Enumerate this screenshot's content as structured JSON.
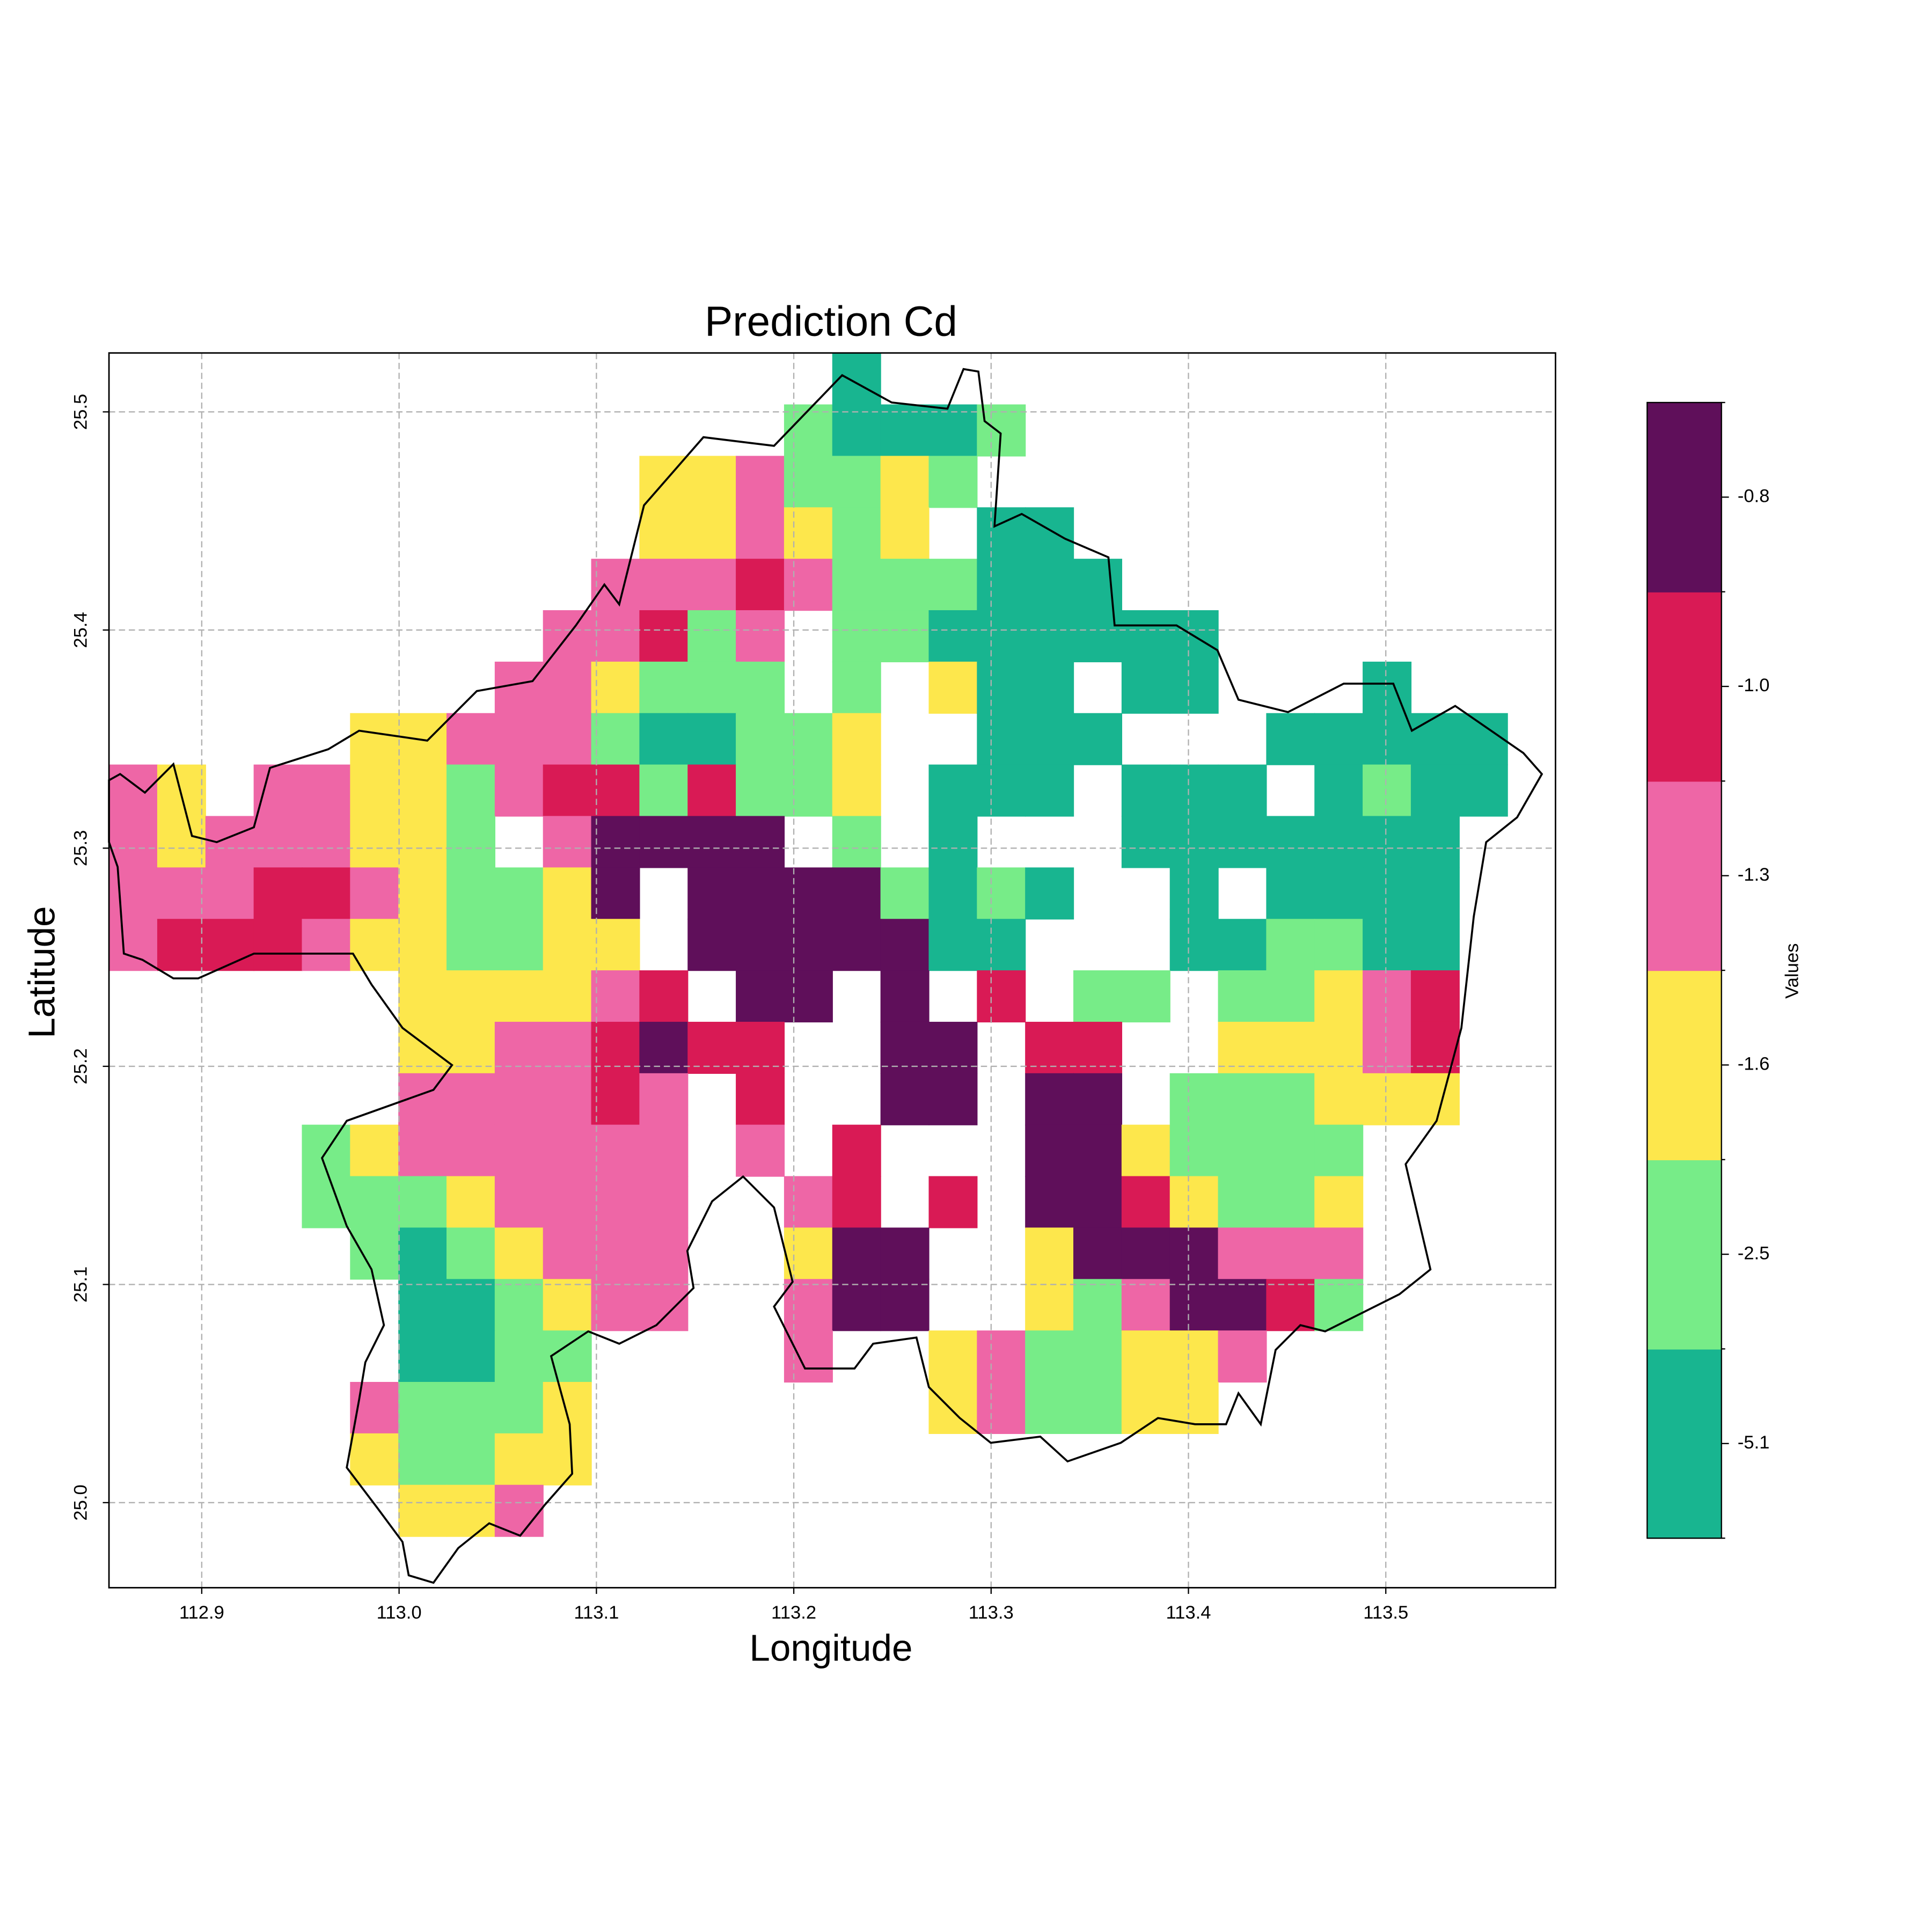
{
  "chart_data": {
    "type": "heatmap",
    "title": "Prediction Cd",
    "xlabel": "Longitude",
    "ylabel": "Latitude",
    "xlim": [
      112.853,
      113.586
    ],
    "ylim": [
      24.961,
      25.527
    ],
    "xticks": [
      112.9,
      {
        "value": 113.0,
        "label": "113.0"
      },
      113.1,
      113.2,
      113.3,
      113.4,
      113.5
    ],
    "yticks": [
      {
        "value": 25.0,
        "label": "25.0"
      },
      25.1,
      25.2,
      25.3,
      25.4,
      25.5
    ],
    "grid": true,
    "colorbar": {
      "label": "Values",
      "colors": [
        "#18b590",
        "#77ec88",
        "#fde74c",
        "#ee66a6",
        "#d91a55",
        "#5f0f5a"
      ],
      "ticks": [
        -5.1,
        -2.5,
        -1.6,
        -1.3,
        {
          "value": -1.0,
          "label": "-1.0"
        },
        -0.8
      ]
    },
    "z": [
      [
        null,
        null,
        null,
        null,
        null,
        null,
        null,
        null,
        null,
        null,
        null,
        null,
        null,
        null,
        null,
        -5.1,
        null,
        null,
        null,
        null,
        null,
        null,
        null,
        null,
        null,
        null,
        null,
        null,
        null,
        null
      ],
      [
        null,
        null,
        null,
        null,
        null,
        null,
        null,
        null,
        null,
        null,
        null,
        null,
        null,
        null,
        -2.5,
        -5.1,
        -5.1,
        -5.1,
        -2.5,
        null,
        null,
        null,
        null,
        null,
        null,
        null,
        null,
        null,
        null,
        null
      ],
      [
        null,
        null,
        null,
        null,
        null,
        null,
        null,
        null,
        null,
        null,
        null,
        -1.6,
        -1.6,
        -1.3,
        -2.5,
        -2.5,
        -1.6,
        -2.5,
        null,
        null,
        null,
        null,
        null,
        null,
        null,
        null,
        null,
        null,
        null,
        null
      ],
      [
        null,
        null,
        null,
        null,
        null,
        null,
        null,
        null,
        null,
        null,
        null,
        -1.6,
        -1.6,
        -1.3,
        -1.6,
        -2.5,
        -1.6,
        null,
        -5.1,
        -5.1,
        null,
        null,
        null,
        null,
        null,
        null,
        null,
        null,
        null,
        null
      ],
      [
        null,
        null,
        null,
        null,
        null,
        null,
        null,
        null,
        null,
        null,
        -1.3,
        -1.3,
        -1.3,
        -1.0,
        -1.3,
        -2.5,
        -2.5,
        -2.5,
        -5.1,
        -5.1,
        -5.1,
        null,
        null,
        null,
        null,
        null,
        null,
        null,
        null,
        null
      ],
      [
        null,
        null,
        null,
        null,
        null,
        null,
        null,
        null,
        null,
        -1.3,
        -1.3,
        -1.0,
        -2.5,
        -1.3,
        null,
        -2.5,
        -2.5,
        -5.1,
        -5.1,
        -5.1,
        -5.1,
        -5.1,
        -5.1,
        null,
        null,
        null,
        null,
        null,
        null,
        null
      ],
      [
        null,
        null,
        null,
        null,
        null,
        null,
        null,
        null,
        -1.3,
        -1.3,
        -1.6,
        -2.5,
        -2.5,
        -2.5,
        null,
        -2.5,
        null,
        -1.6,
        -5.1,
        -5.1,
        null,
        -5.1,
        -5.1,
        null,
        null,
        null,
        -5.1,
        null,
        null,
        null
      ],
      [
        null,
        null,
        null,
        null,
        null,
        -1.6,
        -1.6,
        -1.3,
        -1.3,
        -1.3,
        -2.5,
        -5.1,
        -5.1,
        -2.5,
        -2.5,
        -1.6,
        null,
        null,
        -5.1,
        -5.1,
        -5.1,
        null,
        null,
        null,
        -5.1,
        -5.1,
        -5.1,
        -5.1,
        -5.1,
        null
      ],
      [
        -1.3,
        -1.6,
        null,
        -1.3,
        -1.3,
        -1.6,
        -1.6,
        -2.5,
        -1.3,
        -1.0,
        -1.0,
        -2.5,
        -1.0,
        -2.5,
        -2.5,
        -1.6,
        null,
        -5.1,
        -5.1,
        -5.1,
        null,
        -5.1,
        -5.1,
        -5.1,
        null,
        -5.1,
        -2.5,
        -5.1,
        -5.1,
        null
      ],
      [
        -1.3,
        -1.6,
        -1.3,
        -1.3,
        -1.3,
        -1.6,
        -1.6,
        -2.5,
        null,
        -1.3,
        -0.8,
        -0.8,
        -0.8,
        -0.8,
        null,
        -2.5,
        null,
        -5.1,
        null,
        null,
        null,
        -5.1,
        -5.1,
        -5.1,
        -5.1,
        -5.1,
        -5.1,
        -5.1,
        null,
        null
      ],
      [
        -1.3,
        -1.3,
        -1.3,
        -1.0,
        -1.0,
        -1.3,
        -1.6,
        -2.5,
        -2.5,
        -1.6,
        -0.8,
        null,
        -0.8,
        -0.8,
        -0.8,
        -0.8,
        -2.5,
        -5.1,
        -2.5,
        -5.1,
        null,
        null,
        -5.1,
        null,
        -5.1,
        -5.1,
        -5.1,
        -5.1,
        null,
        null
      ],
      [
        -1.3,
        -1.0,
        -1.0,
        -1.0,
        -1.3,
        -1.6,
        -1.6,
        -2.5,
        -2.5,
        -1.6,
        -1.6,
        null,
        -0.8,
        -0.8,
        -0.8,
        -0.8,
        -0.8,
        -5.1,
        -5.1,
        null,
        null,
        null,
        -5.1,
        -5.1,
        -2.5,
        -2.5,
        -5.1,
        -5.1,
        null,
        null
      ],
      [
        null,
        null,
        null,
        null,
        null,
        null,
        -1.6,
        -1.6,
        -1.6,
        -1.6,
        -1.3,
        -1.0,
        null,
        -0.8,
        -0.8,
        null,
        -0.8,
        null,
        -1.0,
        null,
        -2.5,
        -2.5,
        null,
        -2.5,
        -2.5,
        -1.6,
        -1.3,
        -1.0,
        null,
        null
      ],
      [
        null,
        null,
        null,
        null,
        null,
        null,
        -1.6,
        -1.6,
        -1.3,
        -1.3,
        -1.0,
        -0.8,
        -1.0,
        -1.0,
        null,
        null,
        -0.8,
        -0.8,
        null,
        -1.0,
        -1.0,
        null,
        null,
        -1.6,
        -1.6,
        -1.6,
        -1.3,
        -1.0,
        null,
        null
      ],
      [
        null,
        null,
        null,
        null,
        null,
        null,
        -1.3,
        -1.3,
        -1.3,
        -1.3,
        -1.0,
        -1.3,
        null,
        -1.0,
        null,
        null,
        -0.8,
        -0.8,
        null,
        -0.8,
        -0.8,
        null,
        -2.5,
        -2.5,
        -2.5,
        -1.6,
        -1.6,
        -1.6,
        null,
        null
      ],
      [
        null,
        null,
        null,
        null,
        -2.5,
        -1.6,
        -1.3,
        -1.3,
        -1.3,
        -1.3,
        -1.3,
        -1.3,
        null,
        -1.3,
        null,
        -1.0,
        null,
        null,
        null,
        -0.8,
        -0.8,
        -1.6,
        -2.5,
        -2.5,
        -2.5,
        -2.5,
        null,
        null,
        null,
        null
      ],
      [
        null,
        null,
        null,
        null,
        -2.5,
        -2.5,
        -2.5,
        -1.6,
        -1.3,
        -1.3,
        -1.3,
        -1.3,
        null,
        null,
        -1.3,
        -1.0,
        null,
        -1.0,
        null,
        -0.8,
        -0.8,
        -1.0,
        -1.6,
        -2.5,
        -2.5,
        -1.6,
        null,
        null,
        null,
        null
      ],
      [
        null,
        null,
        null,
        null,
        null,
        -2.5,
        -5.1,
        -2.5,
        -1.6,
        -1.3,
        -1.3,
        -1.3,
        null,
        null,
        -1.6,
        -0.8,
        -0.8,
        null,
        null,
        -1.6,
        -0.8,
        -0.8,
        -0.8,
        -1.3,
        -1.3,
        -1.3,
        null,
        null,
        null,
        null
      ],
      [
        null,
        null,
        null,
        null,
        null,
        null,
        -5.1,
        -5.1,
        -2.5,
        -1.6,
        -1.3,
        -1.3,
        null,
        null,
        -1.3,
        -0.8,
        -0.8,
        null,
        null,
        -1.6,
        -2.5,
        -1.3,
        -0.8,
        -0.8,
        -1.0,
        -2.5,
        null,
        null,
        null,
        null
      ],
      [
        null,
        null,
        null,
        null,
        null,
        null,
        -5.1,
        -5.1,
        -2.5,
        -2.5,
        null,
        null,
        null,
        null,
        -1.3,
        null,
        null,
        -1.6,
        -1.3,
        -2.5,
        -2.5,
        -1.6,
        -1.6,
        -1.3,
        null,
        null,
        null,
        null,
        null,
        null
      ],
      [
        null,
        null,
        null,
        null,
        null,
        -1.3,
        -2.5,
        -2.5,
        -2.5,
        -1.6,
        null,
        null,
        null,
        null,
        null,
        null,
        null,
        -1.6,
        -1.3,
        -2.5,
        -2.5,
        -1.6,
        -1.6,
        null,
        null,
        null,
        null,
        null,
        null,
        null
      ],
      [
        null,
        null,
        null,
        null,
        null,
        -1.6,
        -2.5,
        -2.5,
        -1.6,
        -1.6,
        null,
        null,
        null,
        null,
        null,
        null,
        null,
        null,
        null,
        null,
        null,
        null,
        null,
        null,
        null,
        null,
        null,
        null,
        null,
        null
      ],
      [
        null,
        null,
        null,
        null,
        null,
        null,
        -1.6,
        -1.6,
        -1.3,
        null,
        null,
        null,
        null,
        null,
        null,
        null,
        null,
        null,
        null,
        null,
        null,
        null,
        null,
        null,
        null,
        null,
        null,
        null,
        null,
        null
      ],
      [
        null,
        null,
        null,
        null,
        null,
        null,
        null,
        null,
        null,
        null,
        null,
        null,
        null,
        null,
        null,
        null,
        null,
        null,
        null,
        null,
        null,
        null,
        null,
        null,
        null,
        null,
        null,
        null,
        null,
        null
      ]
    ]
  }
}
